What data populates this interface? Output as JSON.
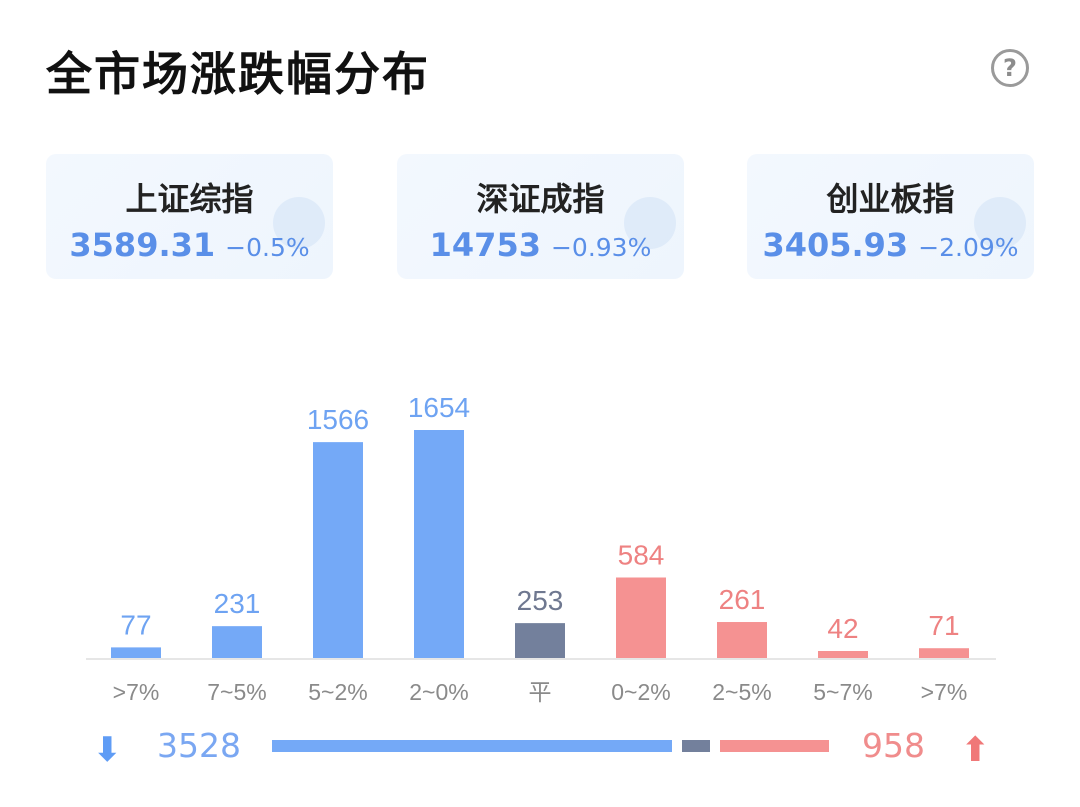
{
  "header": {
    "title": "全市场涨跌幅分布",
    "help_icon": "?"
  },
  "indices": [
    {
      "name": "上证综指",
      "value": "3589.31",
      "change": "−0.5%"
    },
    {
      "name": "深证成指",
      "value": "14753",
      "change": "−0.93%"
    },
    {
      "name": "创业板指",
      "value": "3405.93",
      "change": "−2.09%"
    }
  ],
  "colors": {
    "down": "#74a9f7",
    "flat": "#73809c",
    "up": "#f59292",
    "label_down": "#6ea3f2",
    "label_up": "#ee8282",
    "label_flat": "#6f7890",
    "axis_label": "#8a8a8a"
  },
  "chart_data": {
    "type": "bar",
    "categories": [
      ">7%",
      "7~5%",
      "5~2%",
      "2~0%",
      "平",
      "0~2%",
      "2~5%",
      "5~7%",
      ">7%"
    ],
    "values": [
      77,
      231,
      1566,
      1654,
      253,
      584,
      261,
      42,
      71
    ],
    "groups": [
      "down",
      "down",
      "down",
      "down",
      "flat",
      "up",
      "up",
      "up",
      "up"
    ],
    "ylim": [
      0,
      1654
    ]
  },
  "summary": {
    "down_count": "3528",
    "up_count": "958",
    "down_arrow": "⬇",
    "up_arrow": "⬆",
    "down": 3528,
    "flat": 253,
    "up": 958
  }
}
